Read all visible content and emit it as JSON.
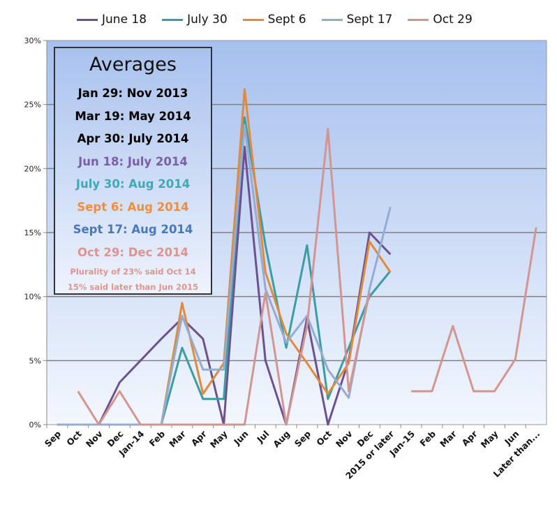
{
  "chart_data": {
    "type": "line",
    "title": "",
    "xlabel": "",
    "ylabel": "",
    "ylim": [
      0,
      30
    ],
    "yticks": [
      "0%",
      "5%",
      "10%",
      "15%",
      "20%",
      "25%",
      "30%"
    ],
    "categories": [
      "Sep",
      "Oct",
      "Nov",
      "Dec",
      "Jan-14",
      "Feb",
      "Mar",
      "Apr",
      "May",
      "Jun",
      "Jul",
      "Aug",
      "Sep",
      "Oct",
      "Nov",
      "Dec",
      "2015 or later",
      "Jan-15",
      "Feb",
      "Mar",
      "Apr",
      "May",
      "Jun",
      "Later than..."
    ],
    "legend_position": "top",
    "series": [
      {
        "name": "June 18",
        "color": "#6b5190",
        "values": [
          0,
          0,
          0,
          3.3,
          5,
          6.7,
          8.3,
          6.7,
          0,
          21.7,
          5,
          0,
          8.3,
          0,
          5,
          15,
          13.3,
          null,
          null,
          null,
          null,
          null,
          null,
          null
        ]
      },
      {
        "name": "July 30",
        "color": "#3b9ca3",
        "values": [
          0,
          0,
          0,
          0,
          0,
          0,
          6,
          2,
          2,
          24,
          14,
          6,
          14,
          2,
          6,
          10,
          12,
          null,
          null,
          null,
          null,
          null,
          null,
          null
        ]
      },
      {
        "name": "Sept 6",
        "color": "#e2893a",
        "values": [
          0,
          0,
          0,
          0,
          0,
          0,
          9.5,
          2.4,
          4.8,
          26.2,
          11.9,
          7.1,
          4.8,
          2.4,
          4.8,
          14.3,
          11.9,
          null,
          null,
          null,
          null,
          null,
          null,
          null
        ]
      },
      {
        "name": "Sept 17",
        "color": "#94acd2",
        "values": [
          0,
          0,
          0,
          0,
          0,
          0,
          8.5,
          4.3,
          4.3,
          23.4,
          10.6,
          6.4,
          8.5,
          4.3,
          2.1,
          10.6,
          17,
          null,
          null,
          null,
          null,
          null,
          null,
          null
        ]
      },
      {
        "name": "Oct 29",
        "color": "#d49590",
        "values": [
          null,
          2.6,
          0,
          2.6,
          0,
          0,
          0,
          0,
          0,
          0,
          10.3,
          0,
          7.7,
          23.1,
          2.6,
          10.3,
          null,
          2.6,
          2.6,
          7.7,
          2.6,
          2.6,
          5.1,
          15.4
        ]
      }
    ]
  },
  "averages": {
    "title": "Averages",
    "rows": [
      {
        "text": "Jan 29: Nov 2013",
        "color": "#000000"
      },
      {
        "text": "Mar 19: May 2014",
        "color": "#000000"
      },
      {
        "text": "Apr 30: July 2014",
        "color": "#000000"
      },
      {
        "text": "Jun 18: July 2014",
        "color": "#7b5ea3"
      },
      {
        "text": "July 30: Aug 2014",
        "color": "#41a8b8"
      },
      {
        "text": "Sept 6: Aug 2014",
        "color": "#f48c3a"
      },
      {
        "text": "Sept 17: Aug 2014",
        "color": "#4a78bd"
      },
      {
        "text": "Oct 29: Dec 2014",
        "color": "#de9490"
      }
    ],
    "notes": [
      "Plurality of 23%  said  Oct  14",
      "15% said later than Jun 2015"
    ]
  }
}
